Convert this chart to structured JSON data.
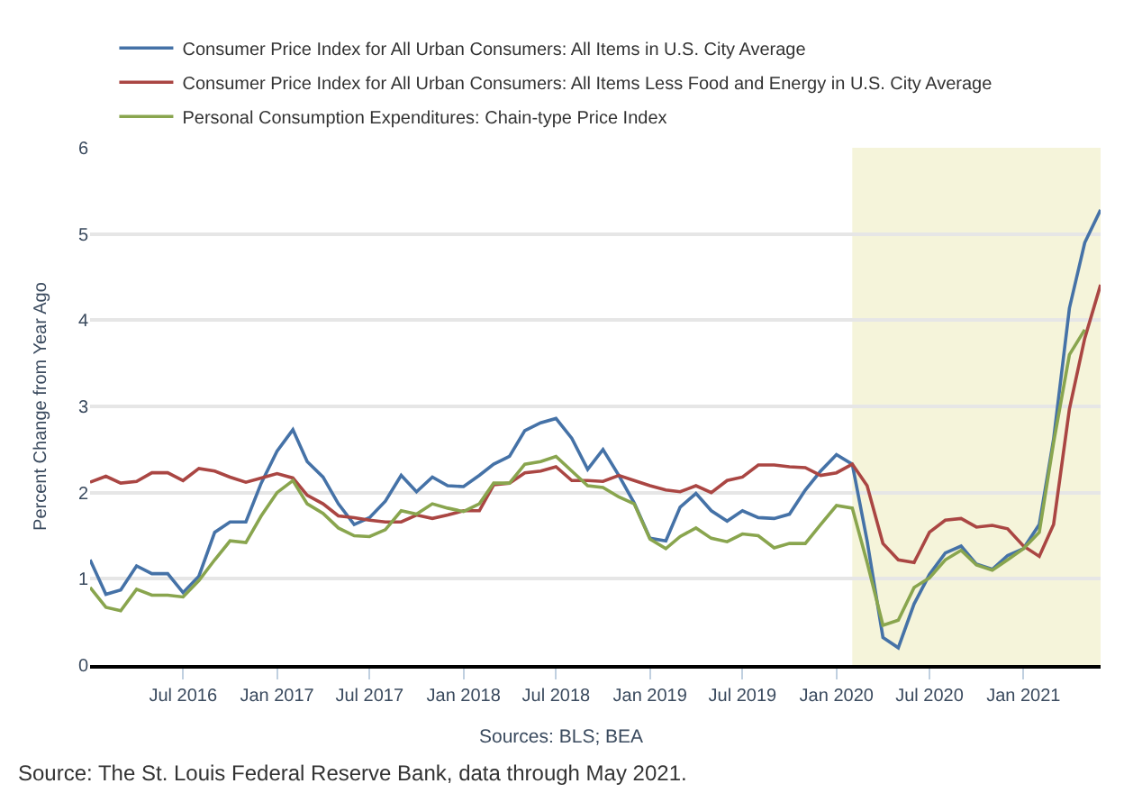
{
  "chart_data": {
    "type": "line",
    "x": [
      "2016-01",
      "2016-02",
      "2016-03",
      "2016-04",
      "2016-05",
      "2016-06",
      "2016-07",
      "2016-08",
      "2016-09",
      "2016-10",
      "2016-11",
      "2016-12",
      "2017-01",
      "2017-02",
      "2017-03",
      "2017-04",
      "2017-05",
      "2017-06",
      "2017-07",
      "2017-08",
      "2017-09",
      "2017-10",
      "2017-11",
      "2017-12",
      "2018-01",
      "2018-02",
      "2018-03",
      "2018-04",
      "2018-05",
      "2018-06",
      "2018-07",
      "2018-08",
      "2018-09",
      "2018-10",
      "2018-11",
      "2018-12",
      "2019-01",
      "2019-02",
      "2019-03",
      "2019-04",
      "2019-05",
      "2019-06",
      "2019-07",
      "2019-08",
      "2019-09",
      "2019-10",
      "2019-11",
      "2019-12",
      "2020-01",
      "2020-02",
      "2020-03",
      "2020-04",
      "2020-05",
      "2020-06",
      "2020-07",
      "2020-08",
      "2020-09",
      "2020-10",
      "2020-11",
      "2020-12",
      "2021-01",
      "2021-02",
      "2021-03",
      "2021-04",
      "2021-05",
      "2021-06"
    ],
    "series": [
      {
        "name": "Consumer Price Index for All Urban Consumers: All Items in U.S. City Average",
        "color": "#4572a7",
        "values": [
          1.22,
          0.82,
          0.87,
          1.15,
          1.06,
          1.06,
          0.84,
          1.03,
          1.54,
          1.66,
          1.66,
          2.11,
          2.48,
          2.73,
          2.36,
          2.18,
          1.87,
          1.63,
          1.71,
          1.9,
          2.2,
          2.01,
          2.18,
          2.08,
          2.07,
          2.2,
          2.33,
          2.42,
          2.72,
          2.81,
          2.86,
          2.63,
          2.27,
          2.5,
          2.2,
          1.88,
          1.47,
          1.44,
          1.83,
          1.99,
          1.79,
          1.67,
          1.79,
          1.71,
          1.7,
          1.75,
          2.03,
          2.25,
          2.44,
          2.33,
          1.44,
          0.32,
          0.2,
          0.71,
          1.05,
          1.3,
          1.38,
          1.17,
          1.11,
          1.27,
          1.35,
          1.63,
          2.62,
          4.14,
          4.9,
          5.28
        ]
      },
      {
        "name": "Consumer Price Index for All Urban Consumers: All Items Less Food and Energy in U.S. City Average",
        "color": "#aa4643",
        "values": [
          2.12,
          2.19,
          2.11,
          2.13,
          2.23,
          2.23,
          2.14,
          2.28,
          2.25,
          2.18,
          2.12,
          2.17,
          2.22,
          2.17,
          1.97,
          1.87,
          1.73,
          1.71,
          1.68,
          1.66,
          1.66,
          1.74,
          1.7,
          1.74,
          1.79,
          1.79,
          2.09,
          2.11,
          2.23,
          2.25,
          2.3,
          2.14,
          2.14,
          2.13,
          2.2,
          2.14,
          2.08,
          2.03,
          2.01,
          2.08,
          2.0,
          2.14,
          2.18,
          2.32,
          2.32,
          2.3,
          2.29,
          2.2,
          2.23,
          2.33,
          2.08,
          1.41,
          1.22,
          1.19,
          1.54,
          1.68,
          1.7,
          1.6,
          1.62,
          1.58,
          1.38,
          1.26,
          1.63,
          2.97,
          3.79,
          4.41
        ]
      },
      {
        "name": "Personal Consumption Expenditures: Chain-type Price Index",
        "color": "#89a54e",
        "values": [
          0.9,
          0.67,
          0.63,
          0.88,
          0.81,
          0.81,
          0.79,
          0.98,
          1.22,
          1.44,
          1.42,
          1.73,
          2.0,
          2.14,
          1.87,
          1.76,
          1.59,
          1.5,
          1.49,
          1.57,
          1.79,
          1.75,
          1.87,
          1.82,
          1.78,
          1.87,
          2.11,
          2.11,
          2.33,
          2.36,
          2.42,
          2.25,
          2.08,
          2.06,
          1.95,
          1.87,
          1.46,
          1.35,
          1.49,
          1.59,
          1.47,
          1.43,
          1.52,
          1.5,
          1.36,
          1.41,
          1.41,
          1.63,
          1.85,
          1.82,
          1.19,
          0.46,
          0.52,
          0.9,
          1.01,
          1.22,
          1.33,
          1.16,
          1.1,
          1.22,
          1.35,
          1.54,
          2.58,
          3.6,
          3.89,
          null
        ]
      }
    ],
    "ylabel": "Percent Change from Year Ago",
    "xlim": [
      "2016-01",
      "2021-06"
    ],
    "xticks": [
      {
        "value": "2016-07",
        "label": "Jul 2016"
      },
      {
        "value": "2017-01",
        "label": "Jan 2017"
      },
      {
        "value": "2017-07",
        "label": "Jul 2017"
      },
      {
        "value": "2018-01",
        "label": "Jan 2018"
      },
      {
        "value": "2018-07",
        "label": "Jul 2018"
      },
      {
        "value": "2019-01",
        "label": "Jan 2019"
      },
      {
        "value": "2019-07",
        "label": "Jul 2019"
      },
      {
        "value": "2020-01",
        "label": "Jan 2020"
      },
      {
        "value": "2020-07",
        "label": "Jul 2020"
      },
      {
        "value": "2021-01",
        "label": "Jan 2021"
      }
    ],
    "ylim": [
      0,
      6
    ],
    "yticks": [
      0,
      1,
      2,
      3,
      4,
      5,
      6
    ],
    "bands": [
      {
        "axis": "x",
        "from": "2020-02",
        "to": "2021-06",
        "color": "#f5f4da"
      }
    ],
    "grid": "y",
    "legend": "top left",
    "line_style": "solid",
    "marker": "none",
    "annotations": [
      "Sources: BLS; BEA",
      "Source: The St. Louis Federal Reserve Bank, data through May 2021."
    ]
  }
}
